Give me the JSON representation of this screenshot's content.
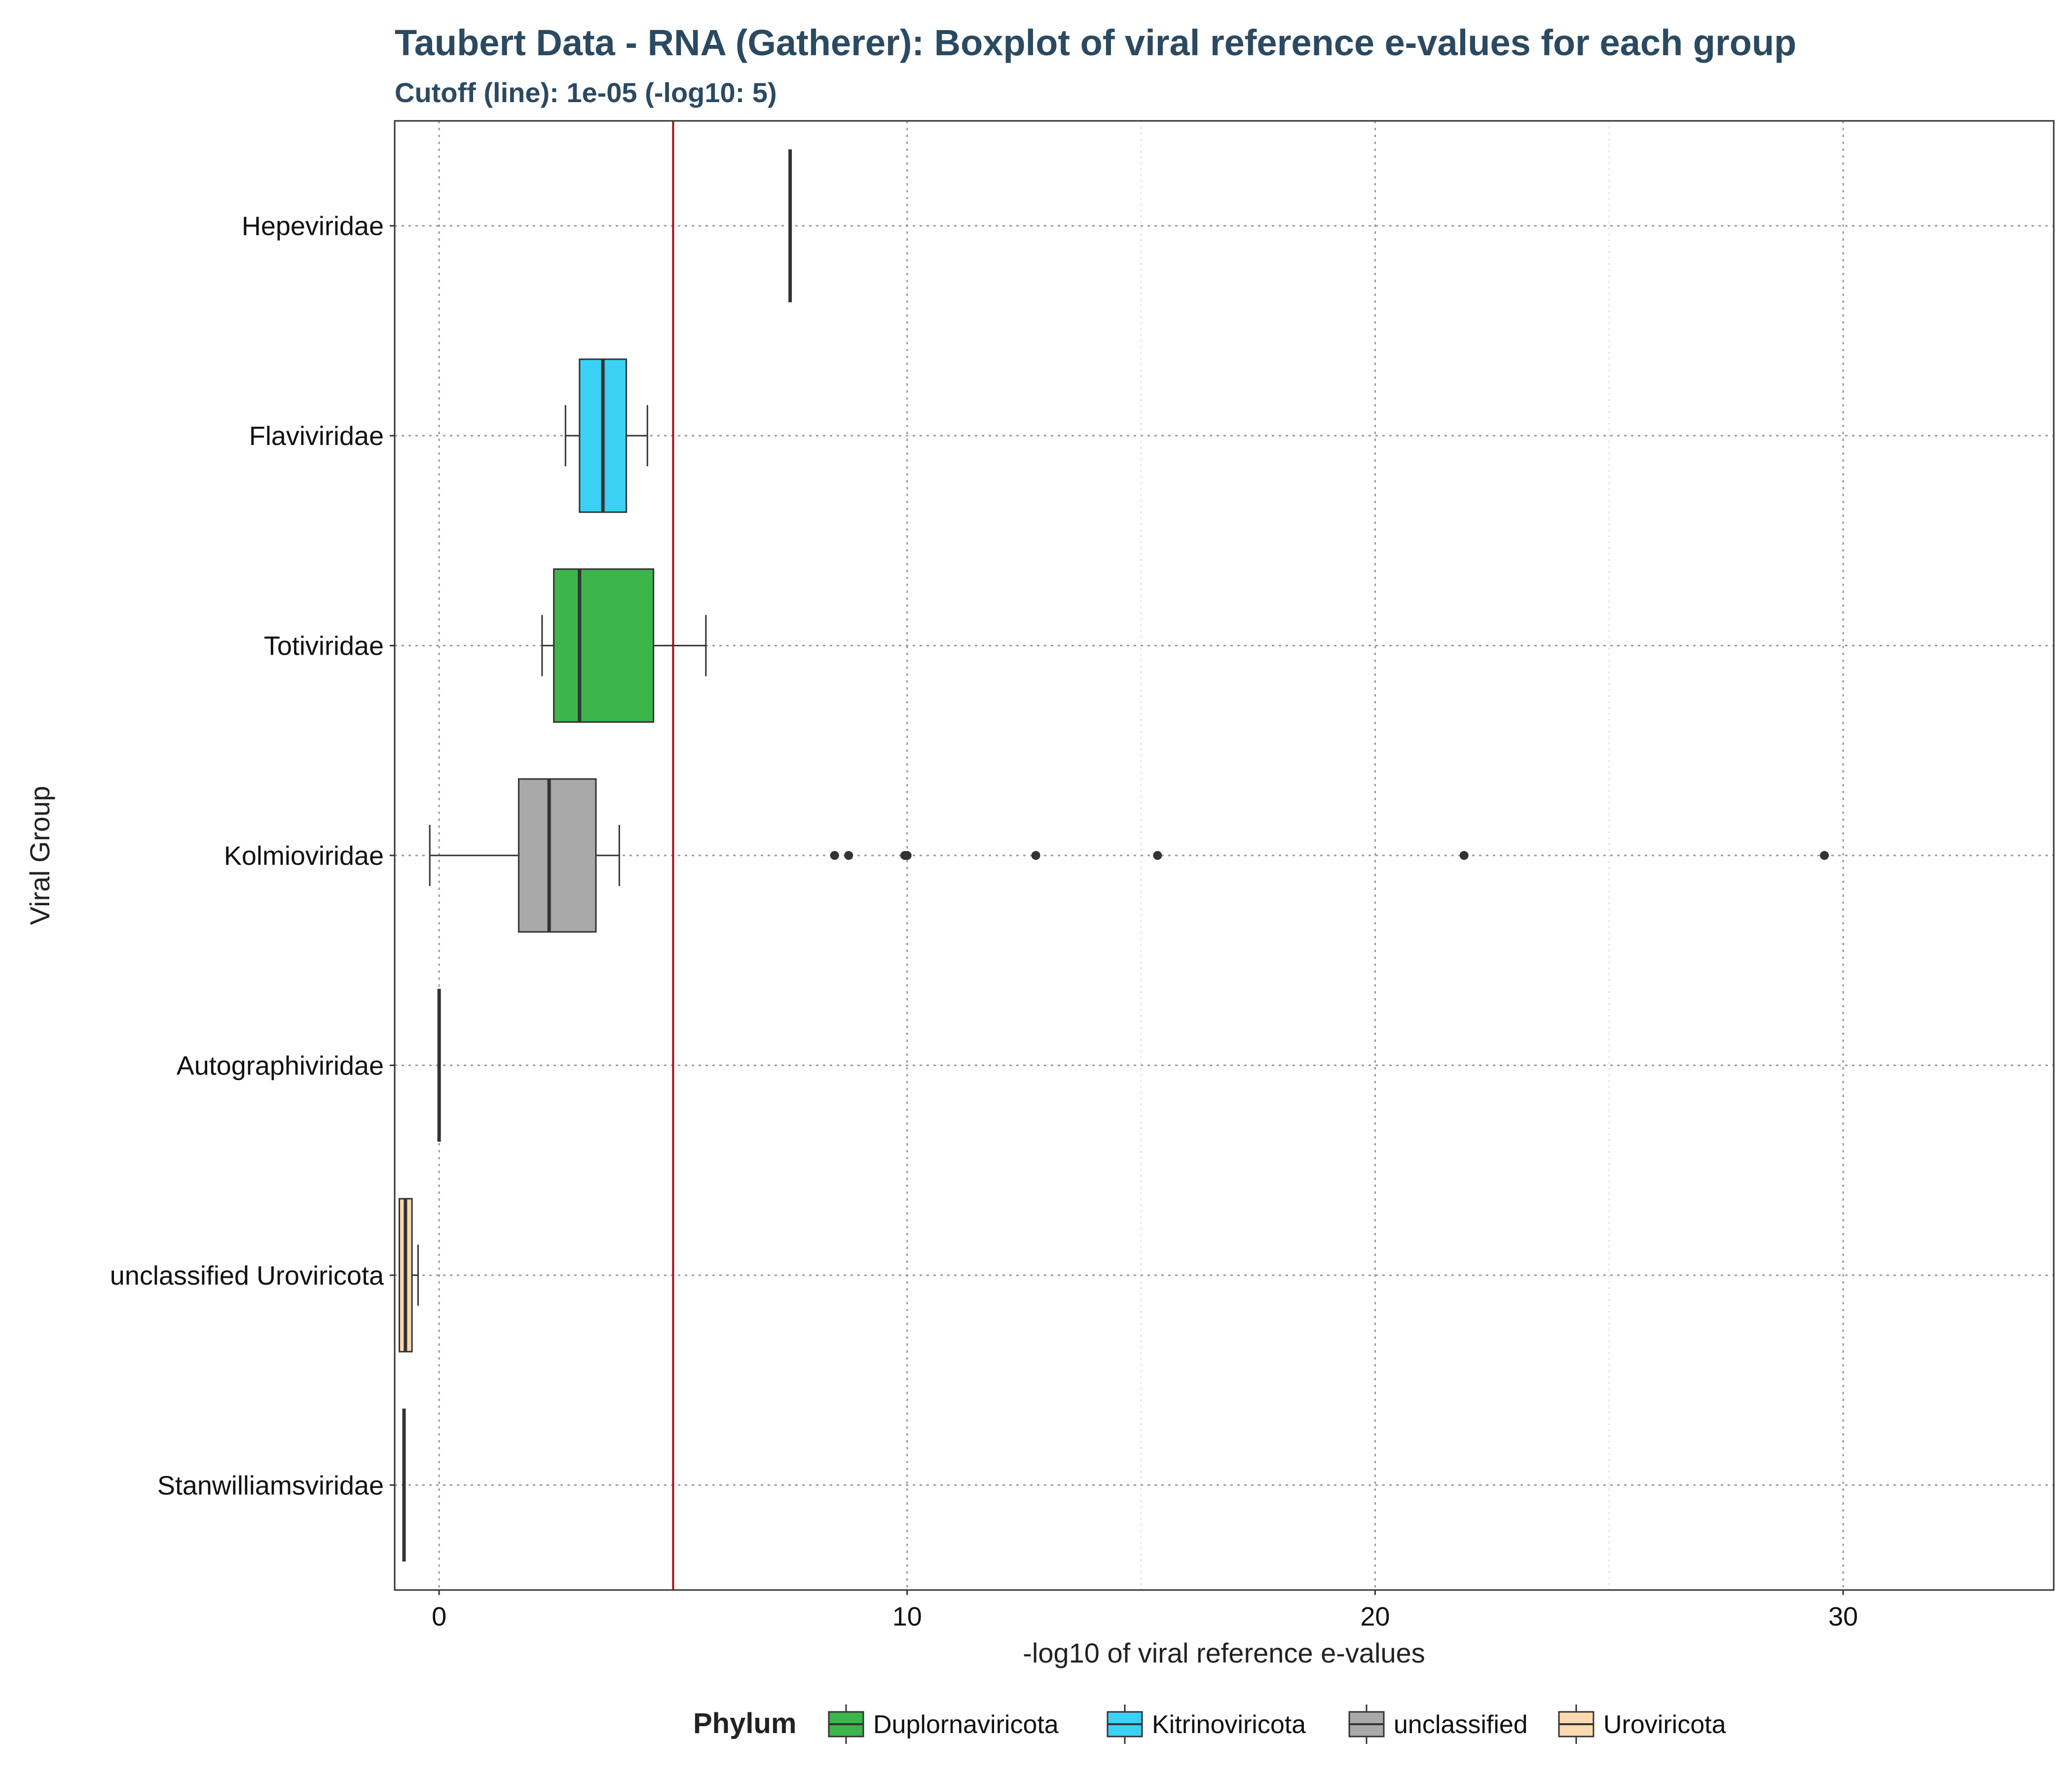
{
  "chart_data": {
    "type": "boxplot",
    "title": "Taubert Data - RNA (Gatherer): Boxplot of viral reference e-values for each group",
    "subtitle": "Cutoff (line): 1e-05 (-log10: 5)",
    "xlabel": "-log10 of viral reference e-values",
    "ylabel": "Viral Group",
    "xlim": [
      -0.95,
      34.5
    ],
    "x_ticks": [
      0,
      10,
      20,
      30
    ],
    "x_tick_labels": [
      "0",
      "10",
      "20",
      "30"
    ],
    "cutoff": 5,
    "cutoff_color": "#a50f15",
    "grid": true,
    "legend_title": "Phylum",
    "legend_position": "bottom",
    "legend": [
      {
        "label": "Duplornaviricota",
        "color": "#3cb54a"
      },
      {
        "label": "Kitrinoviricota",
        "color": "#3ad1f5"
      },
      {
        "label": "unclassified",
        "color": "#a9a9a9"
      },
      {
        "label": "Uroviricota",
        "color": "#fcd9ae"
      }
    ],
    "categories": [
      "Hepeviridae",
      "Flaviviridae",
      "Totiviridae",
      "Kolmioviridae",
      "Autographiviridae",
      "unclassified Uroviricota",
      "Stanwilliamsviridae"
    ],
    "boxes": [
      {
        "group": "Hepeviridae",
        "phylum": "Kitrinoviricota",
        "color": "#3ad1f5",
        "whisker_low": 7.5,
        "q1": 7.5,
        "median": 7.5,
        "q3": 7.5,
        "whisker_high": 7.5,
        "outliers": []
      },
      {
        "group": "Flaviviridae",
        "phylum": "Kitrinoviricota",
        "color": "#3ad1f5",
        "whisker_low": 2.7,
        "q1": 3.0,
        "median": 3.5,
        "q3": 4.0,
        "whisker_high": 4.45,
        "outliers": []
      },
      {
        "group": "Totiviridae",
        "phylum": "Duplornaviricota",
        "color": "#3cb54a",
        "whisker_low": 2.2,
        "q1": 2.45,
        "median": 3.0,
        "q3": 4.58,
        "whisker_high": 5.7,
        "outliers": []
      },
      {
        "group": "Kolmioviridae",
        "phylum": "unclassified",
        "color": "#a9a9a9",
        "whisker_low": -0.2,
        "q1": 1.7,
        "median": 2.35,
        "q3": 3.35,
        "whisker_high": 3.85,
        "outliers": [
          8.45,
          8.75,
          9.95,
          10.0,
          12.75,
          15.35,
          21.9,
          29.6
        ]
      },
      {
        "group": "Autographiviridae",
        "phylum": "Uroviricota",
        "color": "#fcd9ae",
        "whisker_low": 0.0,
        "q1": 0.0,
        "median": 0.0,
        "q3": 0.0,
        "whisker_high": 0.0,
        "outliers": []
      },
      {
        "group": "unclassified Uroviricota",
        "phylum": "Uroviricota",
        "color": "#fcd9ae",
        "whisker_low": -0.85,
        "q1": -0.85,
        "median": -0.72,
        "q3": -0.58,
        "whisker_high": -0.45,
        "outliers": []
      },
      {
        "group": "Stanwilliamsviridae",
        "phylum": "Uroviricota",
        "color": "#fcd9ae",
        "whisker_low": -0.75,
        "q1": -0.75,
        "median": -0.75,
        "q3": -0.75,
        "whisker_high": -0.75,
        "outliers": []
      }
    ]
  }
}
